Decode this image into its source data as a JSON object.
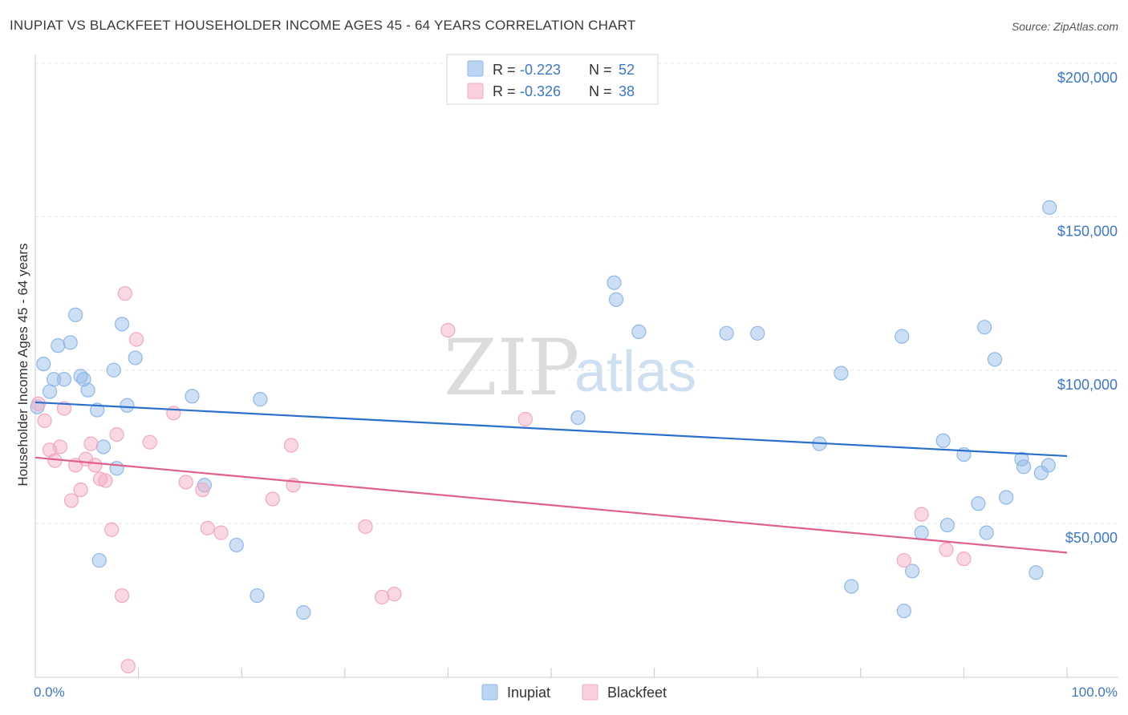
{
  "title": "INUPIAT VS BLACKFEET HOUSEHOLDER INCOME AGES 45 - 64 YEARS CORRELATION CHART",
  "source": "Source: ZipAtlas.com",
  "watermark": {
    "zip": "ZIP",
    "atlas": "atlas"
  },
  "chart_data": {
    "type": "scatter",
    "ylabel": "Householder Income Ages 45 - 64 years",
    "xlim": [
      0,
      100
    ],
    "ylim": [
      0,
      200000
    ],
    "x_tick_labels": {
      "left": "0.0%",
      "right": "100.0%"
    },
    "y_ticks": [
      {
        "value": 50000,
        "label": "$50,000"
      },
      {
        "value": 100000,
        "label": "$100,000"
      },
      {
        "value": 150000,
        "label": "$150,000"
      },
      {
        "value": 200000,
        "label": "$200,000"
      }
    ],
    "grid": true,
    "legend_placement": "top-center",
    "stats": [
      {
        "r_label": "R =",
        "r_value": "-0.223",
        "n_label": "N =",
        "n_value": "52"
      },
      {
        "r_label": "R =",
        "r_value": "-0.326",
        "n_label": "N =",
        "n_value": "38"
      }
    ],
    "series": [
      {
        "name": "Inupiat",
        "color": "#8fb8e8",
        "line_color": "#2b6fcc",
        "trend": {
          "x": [
            0,
            100
          ],
          "y": [
            89500,
            72000
          ]
        },
        "points": [
          [
            0.2,
            88000
          ],
          [
            1.4,
            93000
          ],
          [
            0.8,
            102000
          ],
          [
            1.8,
            97000
          ],
          [
            2.2,
            108000
          ],
          [
            2.8,
            97000
          ],
          [
            3.4,
            109000
          ],
          [
            3.9,
            118000
          ],
          [
            4.4,
            98000
          ],
          [
            4.7,
            97000
          ],
          [
            5.1,
            93500
          ],
          [
            6.0,
            87000
          ],
          [
            6.6,
            75000
          ],
          [
            6.2,
            38000
          ],
          [
            7.6,
            100000
          ],
          [
            7.9,
            68000
          ],
          [
            8.4,
            115000
          ],
          [
            8.9,
            88500
          ],
          [
            9.7,
            104000
          ],
          [
            15.2,
            91500
          ],
          [
            16.4,
            62500
          ],
          [
            19.5,
            43000
          ],
          [
            21.5,
            26500
          ],
          [
            21.8,
            90500
          ],
          [
            26.0,
            21000
          ],
          [
            52.6,
            84500
          ],
          [
            56.1,
            128500
          ],
          [
            56.3,
            123000
          ],
          [
            58.5,
            112500
          ],
          [
            67.0,
            112000
          ],
          [
            70.0,
            112000
          ],
          [
            76.0,
            76000
          ],
          [
            78.1,
            99000
          ],
          [
            79.1,
            29500
          ],
          [
            84.0,
            111000
          ],
          [
            84.2,
            21500
          ],
          [
            85.0,
            34500
          ],
          [
            85.9,
            47000
          ],
          [
            88.0,
            77000
          ],
          [
            88.4,
            49500
          ],
          [
            90.0,
            72500
          ],
          [
            91.4,
            56500
          ],
          [
            92.0,
            114000
          ],
          [
            92.2,
            47000
          ],
          [
            93.0,
            103500
          ],
          [
            94.1,
            58500
          ],
          [
            95.6,
            71000
          ],
          [
            95.8,
            68500
          ],
          [
            97.0,
            34000
          ],
          [
            97.5,
            66500
          ],
          [
            98.2,
            69000
          ],
          [
            98.3,
            153000
          ]
        ]
      },
      {
        "name": "Blackfeet",
        "color": "#f4a8c0",
        "line_color": "#e0608a",
        "trend": {
          "x": [
            0,
            100
          ],
          "y": [
            71500,
            40500
          ]
        },
        "points": [
          [
            0.3,
            89000
          ],
          [
            0.9,
            83500
          ],
          [
            1.4,
            74000
          ],
          [
            1.9,
            70500
          ],
          [
            2.4,
            75000
          ],
          [
            2.8,
            87500
          ],
          [
            3.5,
            57500
          ],
          [
            3.9,
            69000
          ],
          [
            4.4,
            61000
          ],
          [
            4.9,
            71000
          ],
          [
            5.4,
            76000
          ],
          [
            5.8,
            69000
          ],
          [
            6.3,
            64500
          ],
          [
            6.8,
            64000
          ],
          [
            7.4,
            48000
          ],
          [
            7.9,
            79000
          ],
          [
            8.4,
            26500
          ],
          [
            8.7,
            125000
          ],
          [
            9.0,
            3500
          ],
          [
            9.8,
            110000
          ],
          [
            11.1,
            76500
          ],
          [
            13.4,
            86000
          ],
          [
            14.6,
            63500
          ],
          [
            16.2,
            61000
          ],
          [
            16.7,
            48500
          ],
          [
            18.0,
            47000
          ],
          [
            23.0,
            58000
          ],
          [
            24.8,
            75500
          ],
          [
            25.0,
            62500
          ],
          [
            32.0,
            49000
          ],
          [
            33.6,
            26000
          ],
          [
            34.8,
            27000
          ],
          [
            40.0,
            113000
          ],
          [
            47.5,
            84000
          ],
          [
            84.2,
            38000
          ],
          [
            85.9,
            53000
          ],
          [
            88.3,
            41500
          ],
          [
            90.0,
            38500
          ]
        ]
      }
    ]
  }
}
